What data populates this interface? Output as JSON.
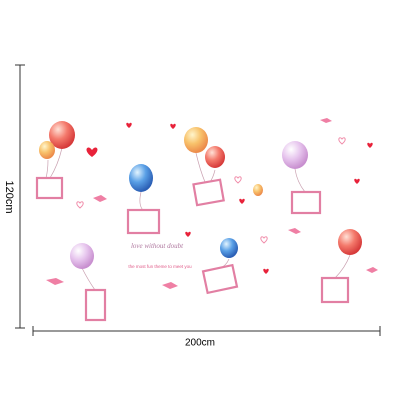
{
  "dimensions": {
    "height": "120cm",
    "width": "200cm"
  },
  "decal_text": {
    "script": "love without doubt",
    "tagline": "the most fun theme to meet you"
  }
}
